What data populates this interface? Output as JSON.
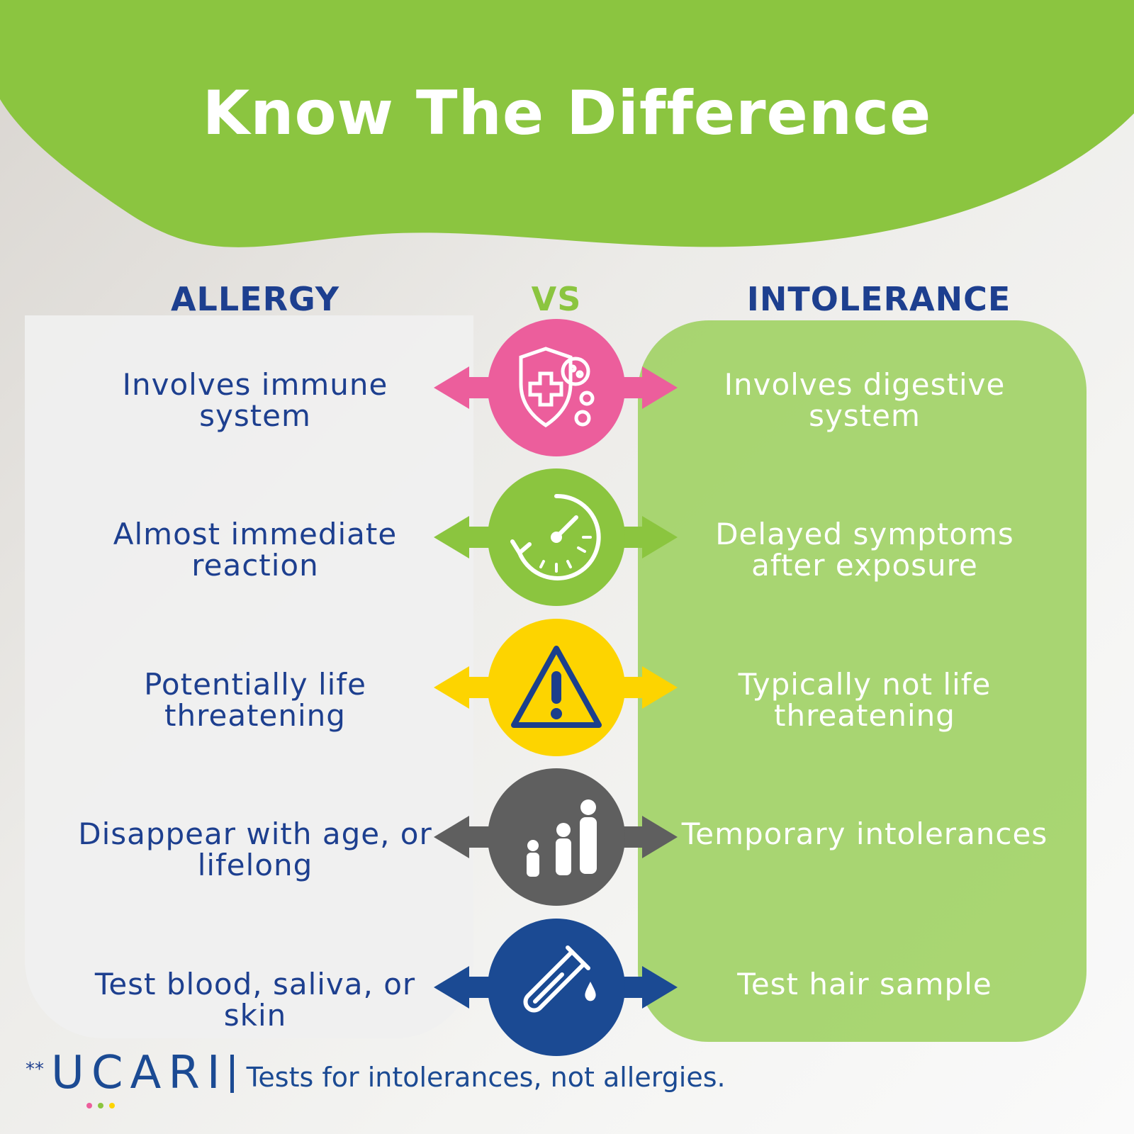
{
  "title": "Know The Difference",
  "columns": {
    "left": "ALLERGY",
    "center": "VS",
    "right": "INTOLERANCE"
  },
  "colors": {
    "header": "#8bc540",
    "navy": "#1d3f8f",
    "pink": "#ec5e9c",
    "green": "#8bc53f",
    "yellow": "#fdd400",
    "gray": "#5f5f5f",
    "blue": "#1b4a93"
  },
  "rows": [
    {
      "left": "Involves immune system",
      "right": "Involves digestive system",
      "icon": "shield-virus-icon",
      "color": "#ec5e9c"
    },
    {
      "left": "Almost immediate reaction",
      "right": "Delayed symptoms after exposure",
      "icon": "stopwatch-icon",
      "color": "#8bc53f"
    },
    {
      "left": "Potentially life threatening",
      "right": "Typically not life threatening",
      "icon": "warning-icon",
      "color": "#fdd400"
    },
    {
      "left": "Disappear with age, or lifelong",
      "right": "Temporary intolerances",
      "icon": "family-age-icon",
      "color": "#5f5f5f"
    },
    {
      "left": "Test blood, saliva, or skin",
      "right": "Test hair sample",
      "icon": "test-tube-icon",
      "color": "#1b4a93"
    }
  ],
  "footer": {
    "prefix": "**",
    "logo": "UCARI",
    "tagline": "Tests for intolerances, not allergies."
  }
}
